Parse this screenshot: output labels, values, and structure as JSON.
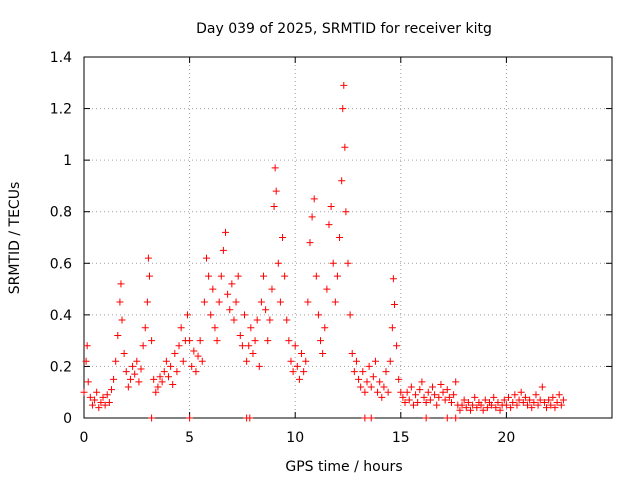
{
  "chart_data": {
    "type": "scatter",
    "title": "Day 039 of 2025, SRMTID for receiver kitg",
    "xlabel": "GPS time / hours",
    "ylabel": "SRMTID / TECUs",
    "xlim": [
      0,
      25
    ],
    "ylim": [
      0,
      1.4
    ],
    "xticks": [
      0,
      5,
      10,
      15,
      20
    ],
    "xtick_labels": [
      "0",
      "5",
      "10",
      "15",
      "20"
    ],
    "yticks": [
      0,
      0.2,
      0.4,
      0.6,
      0.8,
      1.0,
      1.2,
      1.4
    ],
    "ytick_labels": [
      "0",
      "0.2",
      "0.4",
      "0.6",
      "0.8",
      "1",
      "1.2",
      "1.4"
    ],
    "grid": true,
    "marker": "+",
    "color": "#ff0000",
    "series": [
      {
        "name": "SRMTID",
        "points": [
          [
            0.0,
            0.1
          ],
          [
            0.1,
            0.22
          ],
          [
            0.15,
            0.28
          ],
          [
            0.2,
            0.14
          ],
          [
            0.3,
            0.08
          ],
          [
            0.4,
            0.05
          ],
          [
            0.5,
            0.07
          ],
          [
            0.6,
            0.1
          ],
          [
            0.7,
            0.04
          ],
          [
            0.8,
            0.06
          ],
          [
            0.9,
            0.08
          ],
          [
            1.0,
            0.05
          ],
          [
            1.1,
            0.09
          ],
          [
            1.2,
            0.06
          ],
          [
            1.3,
            0.11
          ],
          [
            1.4,
            0.15
          ],
          [
            1.5,
            0.22
          ],
          [
            1.6,
            0.32
          ],
          [
            1.7,
            0.45
          ],
          [
            1.75,
            0.52
          ],
          [
            1.8,
            0.38
          ],
          [
            1.9,
            0.25
          ],
          [
            2.0,
            0.18
          ],
          [
            2.1,
            0.12
          ],
          [
            2.2,
            0.15
          ],
          [
            2.3,
            0.2
          ],
          [
            2.4,
            0.17
          ],
          [
            2.5,
            0.22
          ],
          [
            2.6,
            0.14
          ],
          [
            2.7,
            0.19
          ],
          [
            2.8,
            0.28
          ],
          [
            2.9,
            0.35
          ],
          [
            3.0,
            0.45
          ],
          [
            3.05,
            0.62
          ],
          [
            3.1,
            0.55
          ],
          [
            3.2,
            0.3
          ],
          [
            3.3,
            0.15
          ],
          [
            3.4,
            0.1
          ],
          [
            3.5,
            0.12
          ],
          [
            3.6,
            0.16
          ],
          [
            3.7,
            0.14
          ],
          [
            3.8,
            0.18
          ],
          [
            3.9,
            0.22
          ],
          [
            4.0,
            0.16
          ],
          [
            4.1,
            0.2
          ],
          [
            4.2,
            0.13
          ],
          [
            4.3,
            0.25
          ],
          [
            4.4,
            0.18
          ],
          [
            4.5,
            0.28
          ],
          [
            4.6,
            0.35
          ],
          [
            4.7,
            0.22
          ],
          [
            4.8,
            0.3
          ],
          [
            4.9,
            0.4
          ],
          [
            5.0,
            0.3
          ],
          [
            5.1,
            0.2
          ],
          [
            5.2,
            0.26
          ],
          [
            5.3,
            0.18
          ],
          [
            5.4,
            0.24
          ],
          [
            5.5,
            0.3
          ],
          [
            5.6,
            0.22
          ],
          [
            5.7,
            0.45
          ],
          [
            5.8,
            0.62
          ],
          [
            5.9,
            0.55
          ],
          [
            6.0,
            0.4
          ],
          [
            6.1,
            0.5
          ],
          [
            6.2,
            0.35
          ],
          [
            6.3,
            0.3
          ],
          [
            6.4,
            0.45
          ],
          [
            6.5,
            0.55
          ],
          [
            6.6,
            0.65
          ],
          [
            6.7,
            0.72
          ],
          [
            6.8,
            0.48
          ],
          [
            6.9,
            0.42
          ],
          [
            7.0,
            0.52
          ],
          [
            7.1,
            0.38
          ],
          [
            7.2,
            0.45
          ],
          [
            7.3,
            0.55
          ],
          [
            7.4,
            0.32
          ],
          [
            7.5,
            0.28
          ],
          [
            7.6,
            0.4
          ],
          [
            7.7,
            0.22
          ],
          [
            7.8,
            0.28
          ],
          [
            7.9,
            0.35
          ],
          [
            8.0,
            0.25
          ],
          [
            8.1,
            0.3
          ],
          [
            8.2,
            0.38
          ],
          [
            8.3,
            0.2
          ],
          [
            8.4,
            0.45
          ],
          [
            8.5,
            0.55
          ],
          [
            8.6,
            0.42
          ],
          [
            8.7,
            0.3
          ],
          [
            8.8,
            0.38
          ],
          [
            8.9,
            0.5
          ],
          [
            9.0,
            0.82
          ],
          [
            9.05,
            0.97
          ],
          [
            9.1,
            0.88
          ],
          [
            9.2,
            0.6
          ],
          [
            9.3,
            0.45
          ],
          [
            9.4,
            0.7
          ],
          [
            9.5,
            0.55
          ],
          [
            9.6,
            0.38
          ],
          [
            9.7,
            0.3
          ],
          [
            9.8,
            0.22
          ],
          [
            9.9,
            0.18
          ],
          [
            10.0,
            0.28
          ],
          [
            10.1,
            0.2
          ],
          [
            10.2,
            0.15
          ],
          [
            10.3,
            0.25
          ],
          [
            10.4,
            0.18
          ],
          [
            10.5,
            0.22
          ],
          [
            10.6,
            0.45
          ],
          [
            10.7,
            0.68
          ],
          [
            10.8,
            0.78
          ],
          [
            10.9,
            0.85
          ],
          [
            11.0,
            0.55
          ],
          [
            11.1,
            0.4
          ],
          [
            11.2,
            0.3
          ],
          [
            11.3,
            0.25
          ],
          [
            11.4,
            0.35
          ],
          [
            11.5,
            0.5
          ],
          [
            11.6,
            0.75
          ],
          [
            11.7,
            0.82
          ],
          [
            11.8,
            0.6
          ],
          [
            11.9,
            0.45
          ],
          [
            12.0,
            0.55
          ],
          [
            12.1,
            0.7
          ],
          [
            12.2,
            0.92
          ],
          [
            12.25,
            1.2
          ],
          [
            12.3,
            1.29
          ],
          [
            12.35,
            1.05
          ],
          [
            12.4,
            0.8
          ],
          [
            12.5,
            0.6
          ],
          [
            12.6,
            0.4
          ],
          [
            12.7,
            0.25
          ],
          [
            12.8,
            0.18
          ],
          [
            12.9,
            0.22
          ],
          [
            13.0,
            0.15
          ],
          [
            13.1,
            0.12
          ],
          [
            13.2,
            0.18
          ],
          [
            13.3,
            0.1
          ],
          [
            13.4,
            0.14
          ],
          [
            13.5,
            0.2
          ],
          [
            13.6,
            0.12
          ],
          [
            13.7,
            0.16
          ],
          [
            13.8,
            0.22
          ],
          [
            13.9,
            0.1
          ],
          [
            14.0,
            0.14
          ],
          [
            14.1,
            0.08
          ],
          [
            14.2,
            0.12
          ],
          [
            14.3,
            0.18
          ],
          [
            14.4,
            0.1
          ],
          [
            14.5,
            0.22
          ],
          [
            14.6,
            0.35
          ],
          [
            14.65,
            0.54
          ],
          [
            14.7,
            0.44
          ],
          [
            14.8,
            0.28
          ],
          [
            14.9,
            0.15
          ],
          [
            15.0,
            0.1
          ],
          [
            15.1,
            0.08
          ],
          [
            15.2,
            0.06
          ],
          [
            15.3,
            0.1
          ],
          [
            15.4,
            0.07
          ],
          [
            15.5,
            0.12
          ],
          [
            15.6,
            0.05
          ],
          [
            15.7,
            0.09
          ],
          [
            15.8,
            0.06
          ],
          [
            15.9,
            0.11
          ],
          [
            16.0,
            0.14
          ],
          [
            16.1,
            0.08
          ],
          [
            16.2,
            0.06
          ],
          [
            16.3,
            0.1
          ],
          [
            16.4,
            0.07
          ],
          [
            16.5,
            0.12
          ],
          [
            16.6,
            0.09
          ],
          [
            16.7,
            0.05
          ],
          [
            16.8,
            0.08
          ],
          [
            16.9,
            0.13
          ],
          [
            17.0,
            0.1
          ],
          [
            17.1,
            0.07
          ],
          [
            17.2,
            0.11
          ],
          [
            17.3,
            0.08
          ],
          [
            17.4,
            0.06
          ],
          [
            17.5,
            0.09
          ],
          [
            17.6,
            0.14
          ],
          [
            17.7,
            0.05
          ],
          [
            17.8,
            0.03
          ],
          [
            17.9,
            0.05
          ],
          [
            18.0,
            0.07
          ],
          [
            18.1,
            0.04
          ],
          [
            18.2,
            0.06
          ],
          [
            18.3,
            0.03
          ],
          [
            18.4,
            0.05
          ],
          [
            18.5,
            0.08
          ],
          [
            18.6,
            0.04
          ],
          [
            18.7,
            0.06
          ],
          [
            18.8,
            0.05
          ],
          [
            18.9,
            0.03
          ],
          [
            19.0,
            0.07
          ],
          [
            19.1,
            0.04
          ],
          [
            19.2,
            0.06
          ],
          [
            19.3,
            0.05
          ],
          [
            19.4,
            0.08
          ],
          [
            19.5,
            0.04
          ],
          [
            19.6,
            0.06
          ],
          [
            19.7,
            0.03
          ],
          [
            19.8,
            0.05
          ],
          [
            19.9,
            0.07
          ],
          [
            20.0,
            0.05
          ],
          [
            20.1,
            0.08
          ],
          [
            20.2,
            0.04
          ],
          [
            20.3,
            0.06
          ],
          [
            20.4,
            0.09
          ],
          [
            20.5,
            0.05
          ],
          [
            20.6,
            0.07
          ],
          [
            20.7,
            0.1
          ],
          [
            20.8,
            0.06
          ],
          [
            20.9,
            0.08
          ],
          [
            21.0,
            0.05
          ],
          [
            21.1,
            0.07
          ],
          [
            21.2,
            0.04
          ],
          [
            21.3,
            0.06
          ],
          [
            21.4,
            0.09
          ],
          [
            21.5,
            0.05
          ],
          [
            21.6,
            0.07
          ],
          [
            21.7,
            0.12
          ],
          [
            21.8,
            0.06
          ],
          [
            21.9,
            0.04
          ],
          [
            22.0,
            0.07
          ],
          [
            22.1,
            0.05
          ],
          [
            22.2,
            0.08
          ],
          [
            22.3,
            0.04
          ],
          [
            22.4,
            0.06
          ],
          [
            22.5,
            0.09
          ],
          [
            22.6,
            0.05
          ],
          [
            22.7,
            0.07
          ],
          [
            3.2,
            0.0
          ],
          [
            5.0,
            0.0
          ],
          [
            7.7,
            0.0
          ],
          [
            7.85,
            0.0
          ],
          [
            13.3,
            0.0
          ],
          [
            13.6,
            0.0
          ],
          [
            16.2,
            0.0
          ],
          [
            17.2,
            0.0
          ],
          [
            17.6,
            0.0
          ]
        ]
      }
    ]
  }
}
